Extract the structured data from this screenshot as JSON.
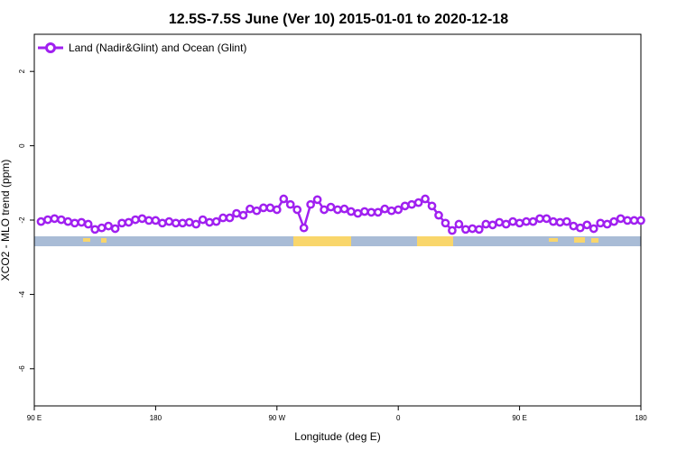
{
  "chart_data": {
    "type": "line",
    "title": "12.5S-7.5S June (Ver 10)   2015-01-01 to 2020-12-18",
    "x_label": "Longitude (deg E)",
    "y_label": "XCO2 - MLO trend (ppm)",
    "legend_position": "top-left",
    "grid": false,
    "xlim": [
      90,
      540
    ],
    "ylim": [
      -7,
      3
    ],
    "xticks": [
      {
        "value": 90,
        "label": "90 E"
      },
      180,
      {
        "value": 270,
        "label": "90 W"
      },
      {
        "value": 360,
        "label": "0"
      },
      {
        "value": 450,
        "label": "90 E"
      },
      {
        "value": 540,
        "label": "180"
      }
    ],
    "yticks": [
      -6,
      -4,
      -2,
      0,
      2
    ],
    "x": [
      95,
      100,
      105,
      110,
      115,
      120,
      125,
      130,
      135,
      140,
      145,
      150,
      155,
      160,
      165,
      170,
      175,
      180,
      185,
      190,
      195,
      200,
      205,
      210,
      215,
      220,
      225,
      230,
      235,
      240,
      245,
      250,
      255,
      260,
      265,
      270,
      275,
      280,
      285,
      290,
      295,
      300,
      305,
      310,
      315,
      320,
      325,
      330,
      335,
      340,
      345,
      350,
      355,
      360,
      365,
      370,
      375,
      380,
      385,
      390,
      395,
      400,
      405,
      410,
      415,
      420,
      425,
      430,
      435,
      440,
      445,
      450,
      455,
      460,
      465,
      470,
      475,
      480,
      485,
      490,
      495,
      500,
      505,
      510,
      515,
      520,
      525,
      530,
      535,
      540
    ],
    "series": [
      {
        "name": "Land (Nadir&Glint) and Ocean (Glint)",
        "color": "#a020f0",
        "values": [
          -2.04,
          -1.99,
          -1.96,
          -1.99,
          -2.04,
          -2.08,
          -2.06,
          -2.11,
          -2.25,
          -2.21,
          -2.16,
          -2.23,
          -2.08,
          -2.06,
          -1.99,
          -1.96,
          -2.01,
          -2.01,
          -2.08,
          -2.04,
          -2.08,
          -2.08,
          -2.06,
          -2.11,
          -1.99,
          -2.06,
          -2.04,
          -1.94,
          -1.94,
          -1.82,
          -1.87,
          -1.7,
          -1.75,
          -1.67,
          -1.67,
          -1.72,
          -1.43,
          -1.58,
          -1.72,
          -2.21,
          -1.58,
          -1.45,
          -1.72,
          -1.65,
          -1.72,
          -1.7,
          -1.77,
          -1.82,
          -1.77,
          -1.79,
          -1.79,
          -1.7,
          -1.75,
          -1.72,
          -1.62,
          -1.58,
          -1.53,
          -1.43,
          -1.62,
          -1.87,
          -2.08,
          -2.28,
          -2.11,
          -2.25,
          -2.23,
          -2.25,
          -2.11,
          -2.13,
          -2.06,
          -2.11,
          -2.04,
          -2.08,
          -2.04,
          -2.04,
          -1.96,
          -1.96,
          -2.04,
          -2.06,
          -2.04,
          -2.16,
          -2.21,
          -2.13,
          -2.23,
          -2.08,
          -2.11,
          -2.04,
          -1.96,
          -2.01,
          -2.01,
          -2.01
        ]
      }
    ]
  }
}
